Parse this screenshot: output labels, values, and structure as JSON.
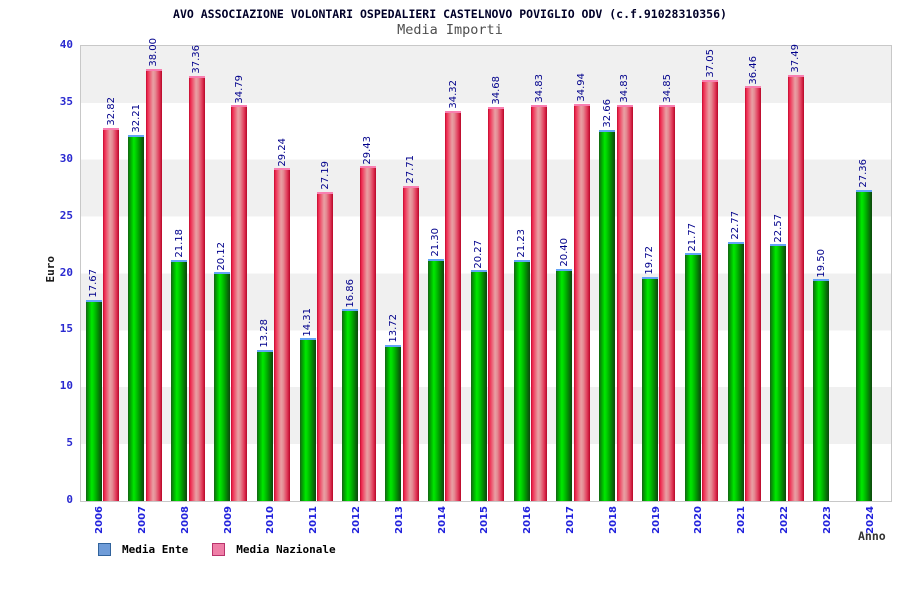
{
  "chart": {
    "title": "AVO ASSOCIAZIONE VOLONTARI OSPEDALIERI CASTELNOVO POVIGLIO ODV (c.f.91028310356)",
    "subtitle": "Media Importi",
    "ylabel": "Euro",
    "xlabel": "Anno"
  },
  "legend": {
    "ente": "Media Ente",
    "nazionale": "Media Nazionale"
  },
  "colors": {
    "bar_green": "#00e800",
    "bar_red": "#e8485f",
    "green_cap_blue": "#63a4f7",
    "red_cap_pink": "#f87fb0",
    "legend_blue": "#6f9cd8",
    "legend_pink": "#ef7fa7",
    "value_label_navy": "#00008b",
    "axis_label_blue": "#2a2ad0",
    "band_gray": "#f0f0f0",
    "title_navy": "#000028"
  },
  "chart_data": {
    "type": "bar",
    "title": "AVO ASSOCIAZIONE VOLONTARI OSPEDALIERI CASTELNOVO POVIGLIO ODV (c.f.91028310356)",
    "subtitle": "Media Importi",
    "xlabel": "Anno",
    "ylabel": "Euro",
    "categories": [
      "2006",
      "2007",
      "2008",
      "2009",
      "2010",
      "2011",
      "2012",
      "2013",
      "2014",
      "2015",
      "2016",
      "2017",
      "2018",
      "2019",
      "2020",
      "2021",
      "2022",
      "2023",
      "2024"
    ],
    "series": [
      {
        "name": "Media Ente",
        "color": "green",
        "values": [
          17.67,
          32.21,
          21.18,
          20.12,
          13.28,
          14.31,
          16.86,
          13.72,
          21.3,
          20.27,
          21.23,
          20.4,
          32.66,
          19.72,
          21.77,
          22.77,
          22.57,
          19.5,
          27.36
        ]
      },
      {
        "name": "Media Nazionale",
        "color": "red",
        "values": [
          32.82,
          38.0,
          37.36,
          34.79,
          29.24,
          27.19,
          29.43,
          27.71,
          34.32,
          34.68,
          34.83,
          34.94,
          34.83,
          34.85,
          37.05,
          36.46,
          37.49,
          null,
          null
        ]
      }
    ],
    "ylim": [
      0,
      40
    ],
    "ytick_step": 5,
    "yticks": [
      0,
      5,
      10,
      15,
      20,
      25,
      30,
      35,
      40
    ],
    "grid": "alternating horizontal bands (gray/white) every 5 units, gray topmost 35-40",
    "legend_position": "bottom-left",
    "value_labels": "above each bar, rotated 90deg CCW, formatted with 2 decimals"
  }
}
